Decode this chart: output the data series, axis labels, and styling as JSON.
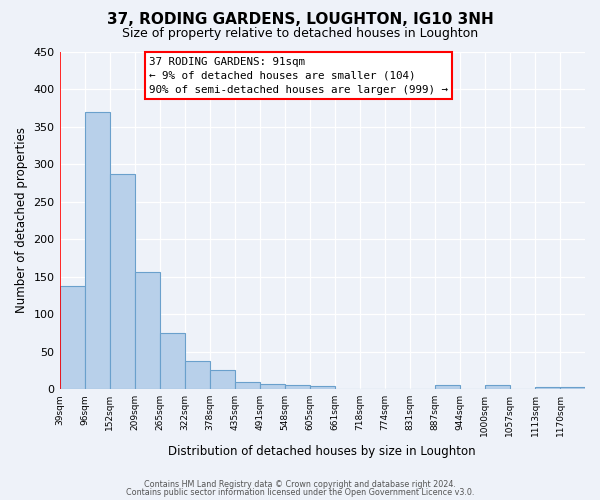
{
  "title": "37, RODING GARDENS, LOUGHTON, IG10 3NH",
  "subtitle": "Size of property relative to detached houses in Loughton",
  "xlabel": "Distribution of detached houses by size in Loughton",
  "ylabel": "Number of detached properties",
  "bin_labels": [
    "39sqm",
    "96sqm",
    "152sqm",
    "209sqm",
    "265sqm",
    "322sqm",
    "378sqm",
    "435sqm",
    "491sqm",
    "548sqm",
    "605sqm",
    "661sqm",
    "718sqm",
    "774sqm",
    "831sqm",
    "887sqm",
    "944sqm",
    "1000sqm",
    "1057sqm",
    "1113sqm",
    "1170sqm"
  ],
  "bar_values": [
    137,
    370,
    287,
    156,
    75,
    38,
    25,
    10,
    7,
    5,
    4,
    0,
    0,
    0,
    0,
    5,
    0,
    5,
    0,
    3,
    3
  ],
  "bar_color": "#b8d0ea",
  "bar_edgecolor": "#6aa0cc",
  "ylim": [
    0,
    450
  ],
  "yticks": [
    0,
    50,
    100,
    150,
    200,
    250,
    300,
    350,
    400,
    450
  ],
  "red_line_x": 0,
  "annotation_title": "37 RODING GARDENS: 91sqm",
  "annotation_line1": "← 9% of detached houses are smaller (104)",
  "annotation_line2": "90% of semi-detached houses are larger (999) →",
  "footer1": "Contains HM Land Registry data © Crown copyright and database right 2024.",
  "footer2": "Contains public sector information licensed under the Open Government Licence v3.0.",
  "background_color": "#eef2f9",
  "grid_color": "#ffffff"
}
